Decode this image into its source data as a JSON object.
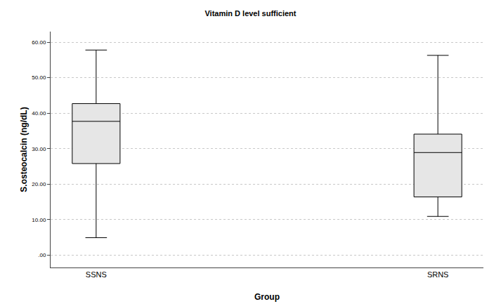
{
  "chart_data": {
    "type": "box",
    "title": "Vitamin D level sufficient",
    "x_label": "Group",
    "y_label": "S.osteocalcin (ng/dL)",
    "categories": [
      "SSNS",
      "SRNS"
    ],
    "min": [
      4.9,
      10.9
    ],
    "q1": [
      25.8,
      16.4
    ],
    "median": [
      37.7,
      28.9
    ],
    "q3": [
      42.7,
      34.1
    ],
    "max": [
      57.8,
      56.3
    ],
    "color": "#e6e6e6",
    "ylim": [
      -3.5,
      63
    ],
    "yticks": [
      {
        "value": 0,
        "label": ".00"
      },
      {
        "value": 10,
        "label": "10.00"
      },
      {
        "value": 20,
        "label": "20.00"
      },
      {
        "value": 30,
        "label": "30.00"
      },
      {
        "value": 40,
        "label": "40.00"
      },
      {
        "value": 50,
        "label": "50.00"
      },
      {
        "value": 60,
        "label": "60.00"
      }
    ],
    "grid": true
  }
}
